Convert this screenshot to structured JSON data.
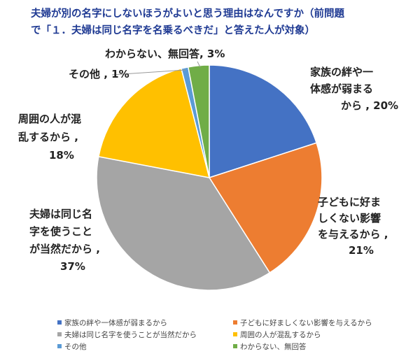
{
  "chart_data": {
    "type": "pie",
    "title_line1": "夫婦が別の名字にしないほうがよいと思う理由はなんですか（前問題",
    "title_line2": "で「１．夫婦は同じ名字を名乗るべきだ」と答えた人が対象）",
    "slices": [
      {
        "name": "家族の絆や一体感が弱まるから",
        "value": 20,
        "color": "#4472c4",
        "label_lines": [
          "家族の絆や一",
          "体感が弱まる",
          "から , 20%"
        ]
      },
      {
        "name": "子どもに好ましくない影響を与えるから",
        "value": 21,
        "color": "#ed7d31",
        "label_lines": [
          "子どもに好ま",
          "しくない影響",
          "を与えるから ,",
          "21%"
        ]
      },
      {
        "name": "夫婦は同じ名字を使うことが当然だから",
        "value": 37,
        "color": "#a5a5a5",
        "label_lines": [
          "夫婦は同じ名",
          "字を使うこと",
          "が当然だから ,",
          "37%"
        ]
      },
      {
        "name": "周囲の人が混乱するから",
        "value": 18,
        "color": "#ffc000",
        "label_lines": [
          "周囲の人が混",
          "乱するから ,",
          "18%"
        ]
      },
      {
        "name": "その他",
        "value": 1,
        "color": "#5b9bd5",
        "label_lines": [
          "その他 , 1%"
        ]
      },
      {
        "name": "わからない、無回答",
        "value": 3,
        "color": "#70ad47",
        "label_lines": [
          "わからない、無回答, 3%"
        ]
      }
    ]
  }
}
